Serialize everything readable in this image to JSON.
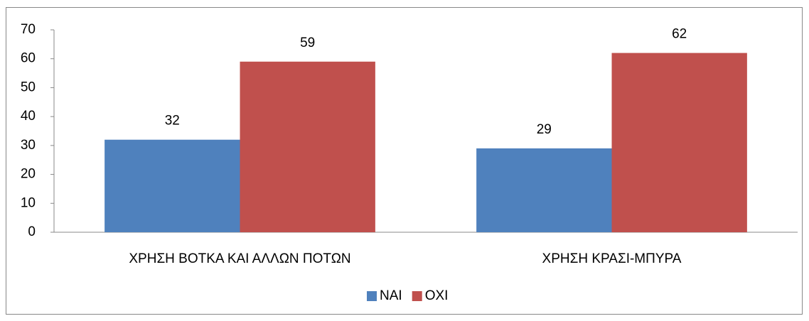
{
  "chart_data": {
    "type": "bar",
    "categories": [
      "ΧΡΗΣΗ ΒΟΤΚΑ ΚΑΙ ΑΛΛΩΝ ΠΟΤΩΝ",
      "ΧΡΗΣΗ ΚΡΑΣΙ-ΜΠΥΡΑ"
    ],
    "series": [
      {
        "name": "ΝΑΙ",
        "color": "#4f81bd",
        "values": [
          32,
          29
        ]
      },
      {
        "name": "ΟΧΙ",
        "color": "#c0504d",
        "values": [
          59,
          62
        ]
      }
    ],
    "ylim": [
      0,
      70
    ],
    "yticks": [
      0,
      10,
      20,
      30,
      40,
      50,
      60,
      70
    ],
    "grid": false,
    "legend": "bottom"
  }
}
